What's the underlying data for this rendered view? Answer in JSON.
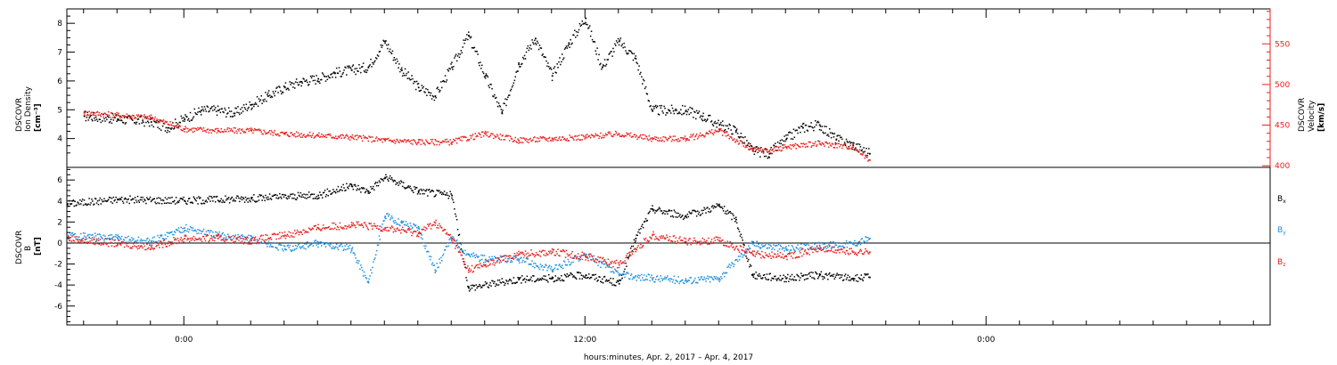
{
  "chart_data": [
    {
      "type": "scatter",
      "panel": "top",
      "ylabel_left": [
        "DSCOVR",
        "Ion Density",
        "[cm⁻³]"
      ],
      "ylabel_right": [
        "DSCOVR",
        "Velocity",
        "[km/s]"
      ],
      "ylim_left": [
        3,
        8.5
      ],
      "ylim_right": [
        398,
        593
      ],
      "yticks_left": [
        "4",
        "5",
        "6",
        "7",
        "8"
      ],
      "yticks_left_values": [
        4,
        5,
        6,
        7,
        8
      ],
      "yticks_right": [
        "400",
        "450",
        "500",
        "550"
      ],
      "yticks_right_values": [
        400,
        450,
        500,
        550
      ],
      "series": [
        {
          "axis": "left",
          "color": "#000000",
          "x": [
            -3,
            -2,
            -1,
            -0.5,
            0,
            0.5,
            1,
            1.5,
            2,
            2.5,
            3,
            3.5,
            4,
            4.5,
            5,
            5.5,
            6,
            6.5,
            7,
            7.5,
            8,
            8.5,
            9,
            9.5,
            10,
            10.5,
            11,
            11.5,
            12,
            12.5,
            13,
            13.5,
            14,
            14.5,
            15,
            15.5,
            16,
            16.5,
            17,
            17.5,
            18,
            18.5,
            19,
            19.5,
            20,
            20.5
          ],
          "y": [
            4.8,
            4.7,
            4.6,
            4.4,
            4.7,
            5.0,
            5.0,
            4.9,
            5.2,
            5.5,
            5.8,
            6.0,
            6.1,
            6.3,
            6.4,
            6.5,
            7.4,
            6.4,
            5.8,
            5.5,
            6.5,
            7.6,
            6.2,
            4.9,
            6.6,
            7.5,
            6.2,
            7.3,
            8.2,
            6.5,
            7.4,
            6.8,
            5.0,
            5.0,
            5.0,
            4.8,
            4.5,
            4.3,
            3.6,
            3.5,
            4.0,
            4.4,
            4.5,
            4.0,
            3.8,
            3.5
          ]
        },
        {
          "axis": "right",
          "color": "#e8201e",
          "x": [
            -3,
            -2,
            -1,
            0,
            1,
            2,
            3,
            4,
            5,
            6,
            7,
            8,
            9,
            10,
            11,
            12,
            13,
            14,
            15,
            16,
            17,
            17.5,
            18,
            19,
            20,
            20.5
          ],
          "y": [
            466,
            463,
            460,
            446,
            444,
            444,
            440,
            438,
            436,
            432,
            430,
            430,
            440,
            432,
            434,
            436,
            440,
            434,
            434,
            444,
            420,
            419,
            424,
            428,
            424,
            408
          ]
        }
      ]
    },
    {
      "type": "scatter",
      "panel": "bottom",
      "ylabel": [
        "DSCOVR",
        "B",
        "[nT]"
      ],
      "ylim": [
        -7.8,
        7.2
      ],
      "yticks": [
        "6",
        "4",
        "2",
        "0",
        "-2",
        "-4",
        "-6"
      ],
      "ytick_values": [
        6,
        4,
        2,
        0,
        -2,
        -4,
        -6
      ],
      "xlabel": "hours:minutes, Apr.  2, 2017 – Apr.  4, 2017",
      "xlim": [
        -3.5,
        32.5
      ],
      "xticks": [
        "0:00",
        "12:00",
        "0:00"
      ],
      "xtick_values": [
        0,
        12,
        24
      ],
      "zero_line": true,
      "series": [
        {
          "name": "Bx",
          "label_main": "B",
          "label_sub": "x",
          "color": "#000000",
          "x": [
            -3.5,
            -2,
            0,
            2,
            4,
            5,
            5.5,
            6,
            7,
            8,
            8.5,
            10,
            11,
            12,
            13,
            13.5,
            14,
            15,
            16,
            16.5,
            17,
            18,
            19,
            20,
            20.5
          ],
          "y": [
            3.8,
            4.2,
            4.1,
            4.3,
            4.6,
            5.5,
            5.0,
            6.3,
            5.0,
            4.6,
            -4.2,
            -3.4,
            -3.3,
            -3.0,
            -3.8,
            0.5,
            3.3,
            2.6,
            3.6,
            2.3,
            -3.0,
            -3.3,
            -3.0,
            -3.3,
            -3.2
          ]
        },
        {
          "name": "By",
          "label_main": "B",
          "label_sub": "y",
          "color": "#1f8fe0",
          "x": [
            -3.5,
            -2,
            -1,
            0,
            1,
            2,
            3,
            4,
            5,
            5.5,
            6,
            6.5,
            7,
            7.5,
            8,
            8.5,
            9,
            10,
            11,
            12,
            13,
            14,
            15,
            16,
            17,
            18,
            19,
            20,
            20.5
          ],
          "y": [
            0.8,
            0.5,
            0.2,
            1.5,
            0.8,
            0.5,
            -0.5,
            0.0,
            -0.5,
            -3.7,
            2.6,
            2.0,
            1.5,
            -2.5,
            0.5,
            -1.0,
            -1.5,
            -1.5,
            -2.5,
            -1.0,
            -3.0,
            -3.3,
            -3.5,
            -3.3,
            0.0,
            -0.5,
            -0.2,
            0.0,
            0.5
          ]
        },
        {
          "name": "Bz",
          "label_main": "B",
          "label_sub": "z",
          "color": "#e8201e",
          "x": [
            -3.5,
            -2,
            -1,
            0,
            1,
            2,
            3,
            4,
            5,
            6,
            7,
            7.5,
            8,
            8.5,
            9,
            10,
            11,
            12,
            13,
            13.5,
            14,
            15,
            16,
            17,
            18,
            19,
            20,
            20.5
          ],
          "y": [
            0.5,
            0.0,
            -0.3,
            0.5,
            0.5,
            0.3,
            0.8,
            1.5,
            1.8,
            1.5,
            1.0,
            2.0,
            0.5,
            -2.5,
            -2.0,
            -1.0,
            -0.8,
            -1.2,
            -2.0,
            -0.5,
            0.8,
            0.2,
            0.3,
            -1.0,
            -1.2,
            -0.5,
            -0.8,
            -0.8
          ]
        }
      ]
    }
  ]
}
